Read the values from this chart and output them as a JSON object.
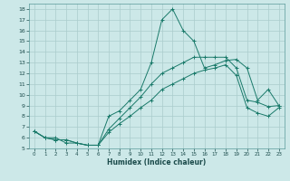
{
  "xlabel": "Humidex (Indice chaleur)",
  "bg_color": "#cce8e8",
  "grid_color": "#aacccc",
  "line_color": "#1a7a6a",
  "xlim": [
    -0.5,
    23.5
  ],
  "ylim": [
    5,
    18.5
  ],
  "xticks": [
    0,
    1,
    2,
    3,
    4,
    5,
    6,
    7,
    8,
    9,
    10,
    11,
    12,
    13,
    14,
    15,
    16,
    17,
    18,
    19,
    20,
    21,
    22,
    23
  ],
  "yticks": [
    5,
    6,
    7,
    8,
    9,
    10,
    11,
    12,
    13,
    14,
    15,
    16,
    17,
    18
  ],
  "line1_x": [
    0,
    1,
    2,
    3,
    4,
    5,
    6,
    7,
    8,
    9,
    10,
    11,
    12,
    13,
    14,
    15,
    16,
    17,
    18,
    19,
    20,
    21,
    22,
    23
  ],
  "line1_y": [
    6.6,
    6.0,
    6.0,
    5.5,
    5.5,
    5.3,
    5.3,
    8.0,
    8.5,
    9.5,
    10.5,
    13.0,
    17.0,
    18.0,
    16.0,
    15.0,
    12.5,
    12.8,
    13.2,
    13.3,
    12.5,
    9.5,
    10.5,
    9.0
  ],
  "line2_x": [
    0,
    1,
    2,
    3,
    4,
    5,
    6,
    7,
    8,
    9,
    10,
    11,
    12,
    13,
    14,
    15,
    16,
    17,
    18,
    19,
    20,
    21,
    22,
    23
  ],
  "line2_y": [
    6.6,
    6.0,
    5.8,
    5.8,
    5.5,
    5.3,
    5.3,
    6.8,
    7.8,
    8.8,
    9.8,
    11.0,
    12.0,
    12.5,
    13.0,
    13.5,
    13.5,
    13.5,
    13.5,
    12.5,
    9.5,
    9.3,
    8.9,
    9.0
  ],
  "line3_x": [
    0,
    1,
    2,
    3,
    4,
    5,
    6,
    7,
    8,
    9,
    10,
    11,
    12,
    13,
    14,
    15,
    16,
    17,
    18,
    19,
    20,
    21,
    22,
    23
  ],
  "line3_y": [
    6.6,
    6.0,
    5.8,
    5.8,
    5.5,
    5.3,
    5.3,
    6.5,
    7.3,
    8.0,
    8.8,
    9.5,
    10.5,
    11.0,
    11.5,
    12.0,
    12.3,
    12.5,
    12.8,
    11.8,
    8.8,
    8.3,
    8.0,
    8.8
  ]
}
